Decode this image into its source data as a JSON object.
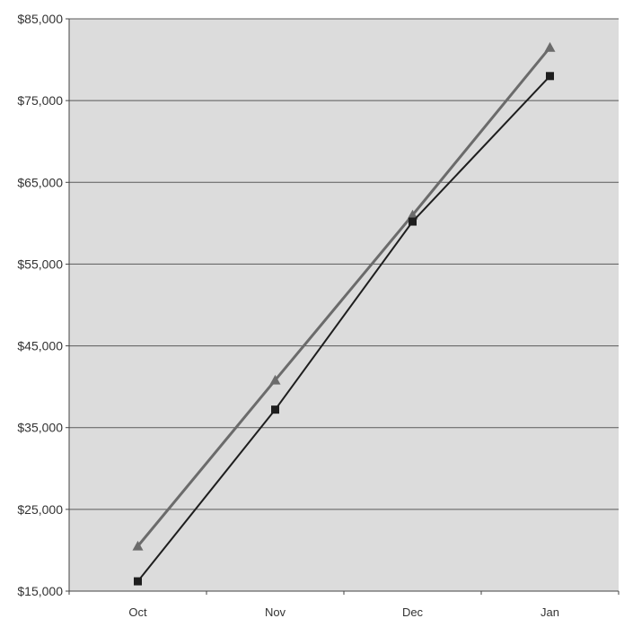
{
  "chart_data": {
    "type": "line",
    "title": "",
    "xlabel": "",
    "ylabel": "",
    "categories": [
      "Oct",
      "Nov",
      "Dec",
      "Jan"
    ],
    "ylim": [
      15000,
      85000
    ],
    "yticks": [
      15000,
      25000,
      35000,
      45000,
      55000,
      65000,
      75000,
      85000
    ],
    "ytick_labels": [
      "$15,000",
      "$25,000",
      "$35,000",
      "$45,000",
      "$55,000",
      "$65,000",
      "$75,000",
      "$85,000"
    ],
    "grid": true,
    "legend": "none",
    "series": [
      {
        "values": [
          20500,
          40800,
          61000,
          81500
        ],
        "color": "#6b6b6b",
        "marker": "triangle"
      },
      {
        "values": [
          16200,
          37200,
          60200,
          78000
        ],
        "color": "#1e1e1e",
        "marker": "square"
      }
    ]
  },
  "colors": {
    "plot_background": "#dcdcdc",
    "gridline": "#5a5a5a",
    "axis": "#444444"
  }
}
